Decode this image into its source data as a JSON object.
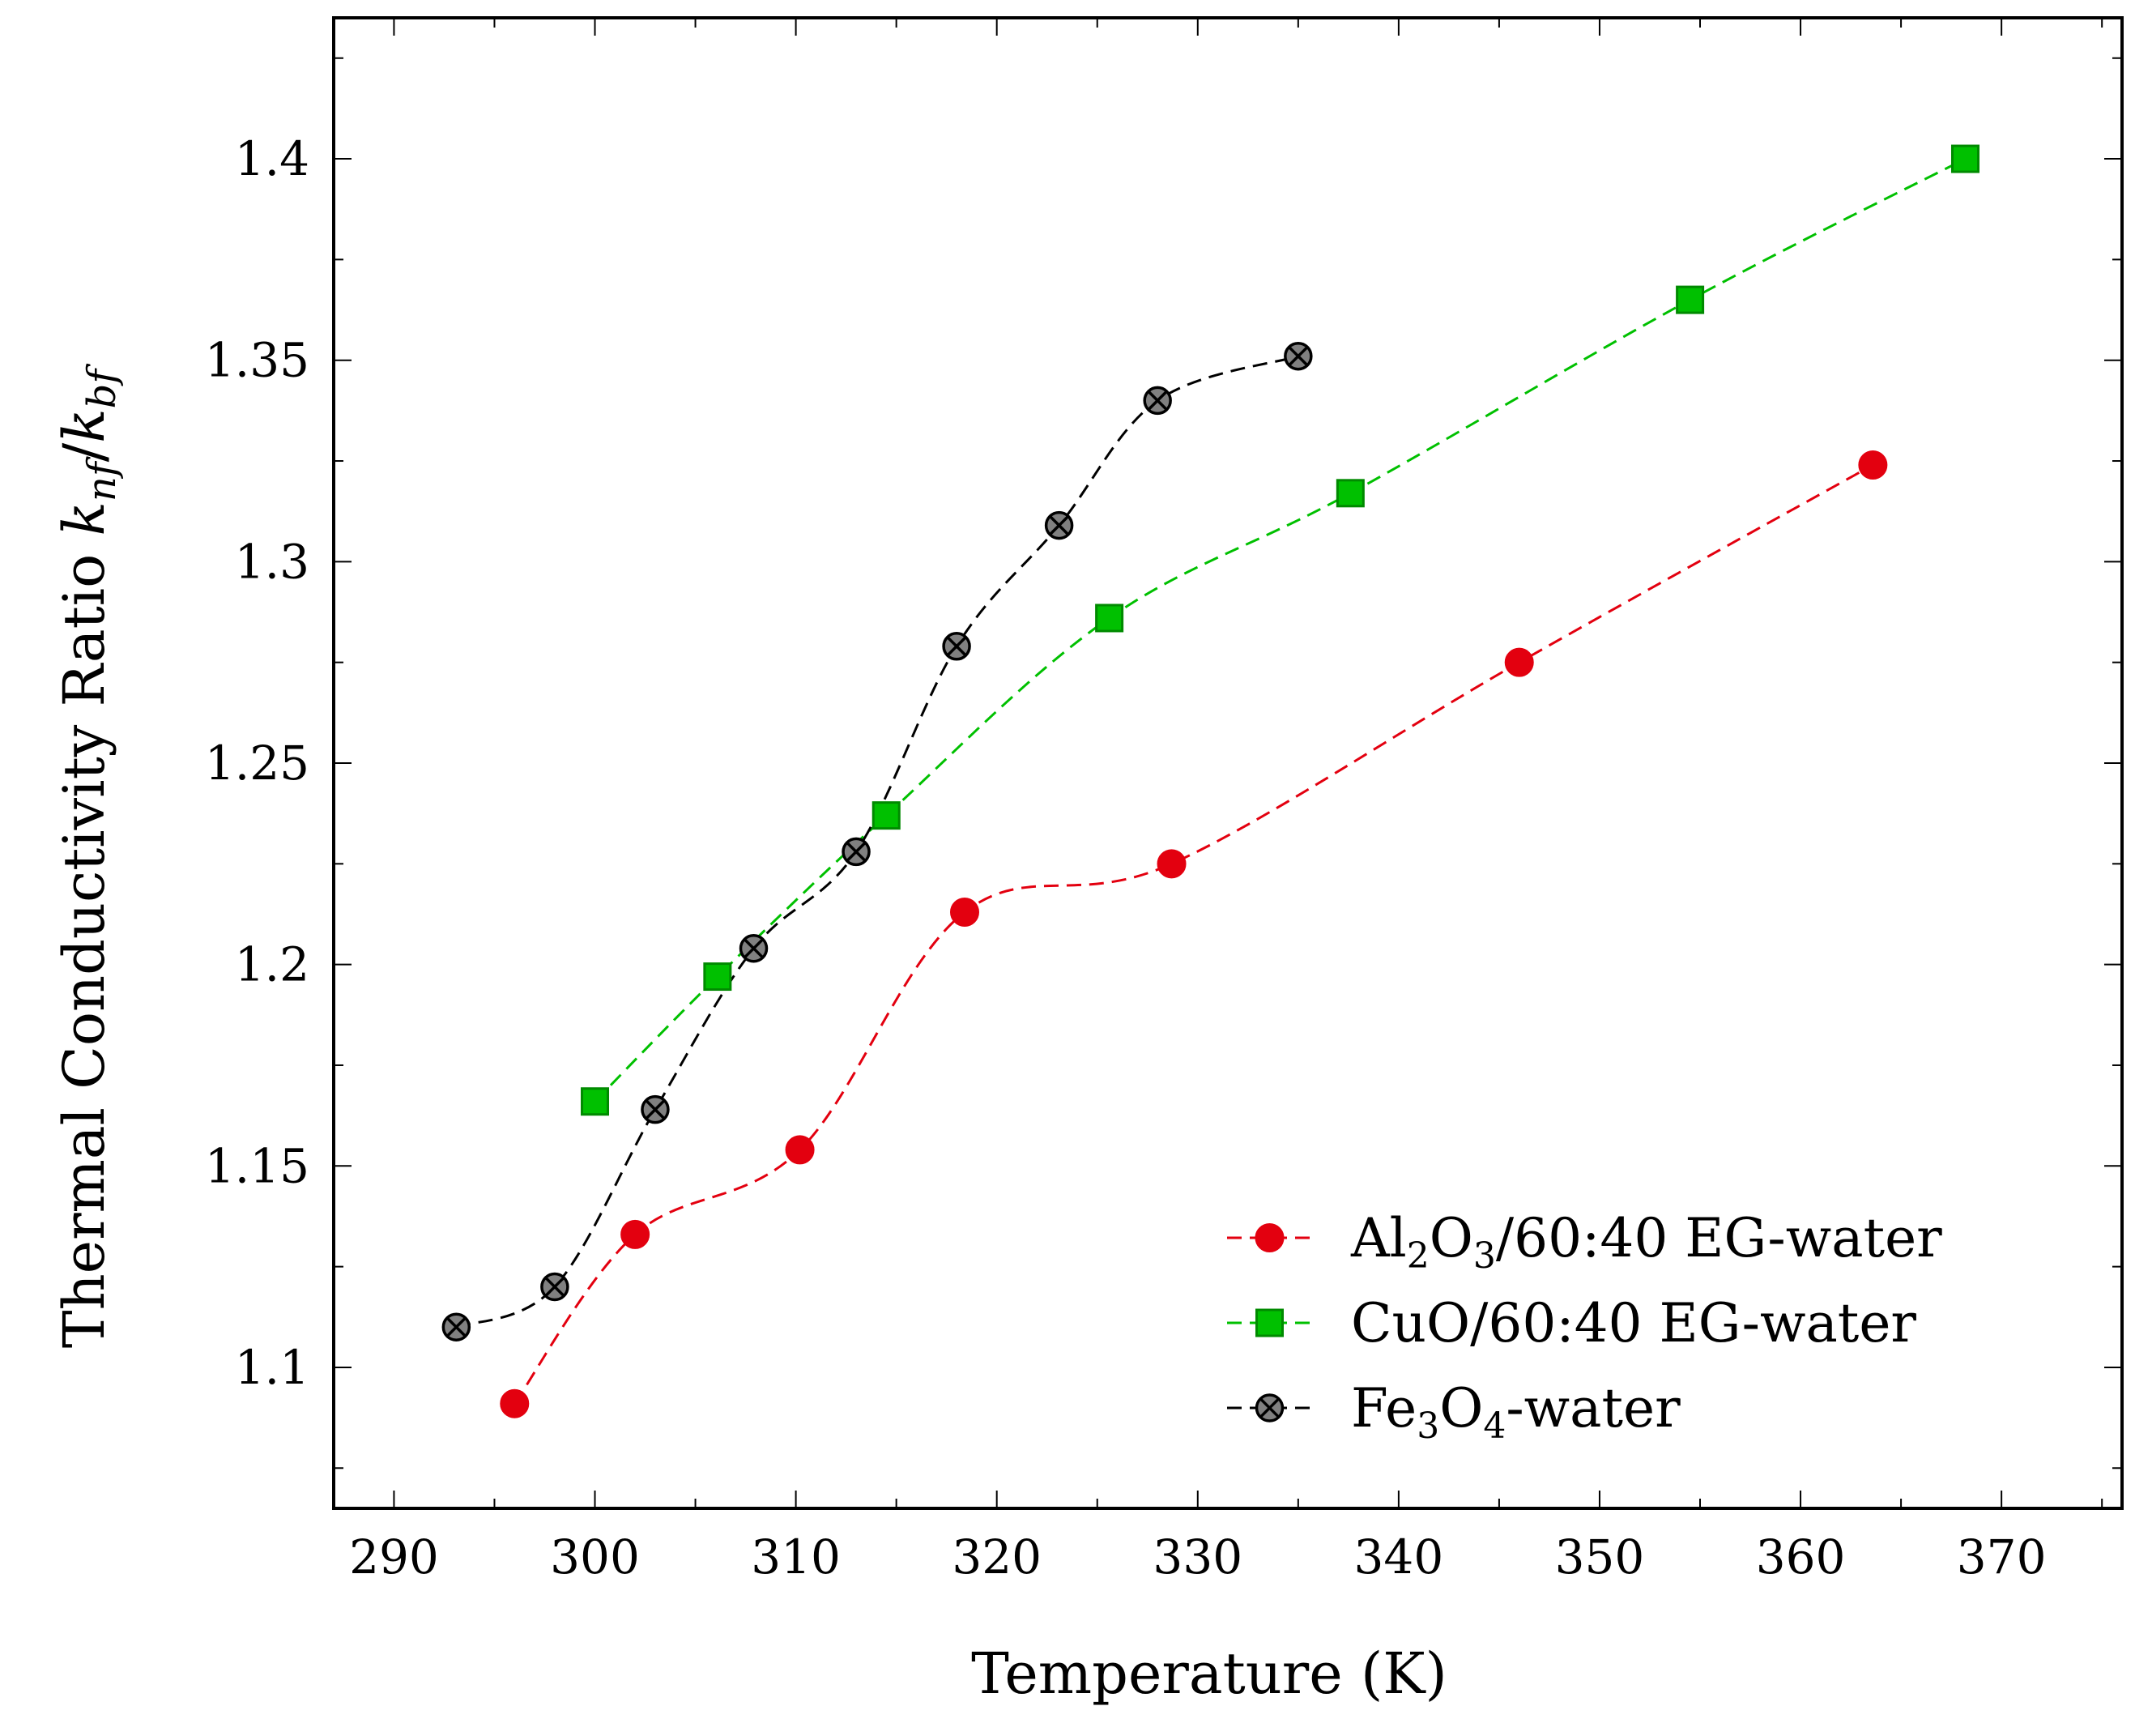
{
  "chart_data": {
    "type": "line",
    "title": "",
    "xlabel": "Temperature (K)",
    "ylabel": {
      "prefix": "Thermal Conductivity Ratio ",
      "k1": "k",
      "sub1": "nf",
      "slash": "/",
      "k2": "k",
      "sub2": "bf"
    },
    "xlim": [
      287,
      376
    ],
    "ylim": [
      1.065,
      1.435
    ],
    "xticks": [
      290,
      300,
      310,
      320,
      330,
      340,
      350,
      360,
      370
    ],
    "yticks": [
      1.1,
      1.15,
      1.2,
      1.25,
      1.3,
      1.35,
      1.4
    ],
    "xtick_labels": [
      "290",
      "300",
      "310",
      "320",
      "330",
      "340",
      "350",
      "360",
      "370"
    ],
    "ytick_labels": [
      "1.1",
      "1.15",
      "1.2",
      "1.25",
      "1.3",
      "1.35",
      "1.4"
    ],
    "grid": false,
    "legend_position": "bottom-right",
    "series": [
      {
        "name": "Al2O3/60:40 EG-water",
        "legend_parts": [
          [
            "Al",
            ""
          ],
          [
            "2",
            "sub"
          ],
          [
            "O",
            ""
          ],
          [
            "3",
            "sub"
          ],
          [
            "/60:40 EG-water",
            ""
          ]
        ],
        "color": "#e3000f",
        "marker": "circle",
        "x": [
          296,
          302,
          310.2,
          318.4,
          328.7,
          346,
          363.6
        ],
        "y": [
          1.091,
          1.133,
          1.154,
          1.213,
          1.225,
          1.275,
          1.324
        ]
      },
      {
        "name": "CuO/60:40 EG-water",
        "legend_parts": [
          [
            "CuO/60:40 EG-water",
            ""
          ]
        ],
        "color": "#00c000",
        "stroke": "#008a00",
        "marker": "square",
        "x": [
          300,
          306.1,
          314.5,
          325.6,
          337.6,
          354.5,
          368.2
        ],
        "y": [
          1.166,
          1.197,
          1.237,
          1.286,
          1.317,
          1.365,
          1.4
        ]
      },
      {
        "name": "Fe3O4-water",
        "legend_parts": [
          [
            "Fe",
            ""
          ],
          [
            "3",
            "sub"
          ],
          [
            "O",
            ""
          ],
          [
            "4",
            "sub"
          ],
          [
            "-water",
            ""
          ]
        ],
        "color": "#000000",
        "fill": "#808080",
        "marker": "otimes",
        "x": [
          293.1,
          298,
          303,
          307.9,
          313,
          318,
          323.1,
          328,
          335
        ],
        "y": [
          1.11,
          1.12,
          1.164,
          1.204,
          1.228,
          1.279,
          1.309,
          1.34,
          1.351
        ]
      }
    ]
  }
}
